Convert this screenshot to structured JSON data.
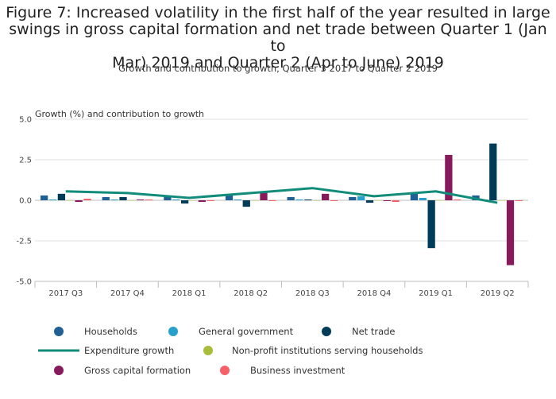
{
  "title": "Figure 7: Increased volatility in the first half of the year resulted in large swings in gross capital formation and net trade between Quarter 1 (Jan to Mar) 2019 and Quarter 2 (Apr to June) 2019",
  "title_lines": [
    "Figure 7: Increased volatility in the first half of the year resulted in large",
    "swings in gross capital formation and net trade between Quarter 1 (Jan to",
    "Mar) 2019 and Quarter 2 (Apr to June) 2019"
  ],
  "subtitle": "Growth and contribution to growth, Quarter 3 2017 to Quarter 2 2019",
  "chart_data": {
    "type": "bar",
    "title": "Figure 7: Increased volatility in the first half of the year resulted in large swings in gross capital formation and net trade between Quarter 1 (Jan to Mar) 2019 and Quarter 2 (Apr to June) 2019",
    "subtitle": "Growth and contribution to growth, Quarter 3 2017 to Quarter 2 2019",
    "ylabel": "Growth (%) and contribution to growth",
    "xlabel": "",
    "ylim": [
      -5.0,
      5.0
    ],
    "yticks": [
      5.0,
      2.5,
      0.0,
      -2.5,
      -5.0
    ],
    "ytick_labels": [
      "5.0",
      "2.5",
      "0.0",
      "-2.5",
      "-5.0"
    ],
    "grid": true,
    "legend_position": "bottom",
    "categories": [
      "2017 Q3",
      "2017 Q4",
      "2018 Q1",
      "2018 Q2",
      "2018 Q3",
      "2018 Q4",
      "2019 Q1",
      "2019 Q2"
    ],
    "series": [
      {
        "name": "Households",
        "kind": "bar",
        "color": "#206095",
        "values": [
          0.3,
          0.2,
          0.2,
          0.3,
          0.2,
          0.2,
          0.4,
          0.3
        ]
      },
      {
        "name": "General government",
        "kind": "bar",
        "color": "#27a0cc",
        "values": [
          0.05,
          0.05,
          0.05,
          0.05,
          0.05,
          0.25,
          0.15,
          0.05
        ]
      },
      {
        "name": "Net trade",
        "kind": "bar",
        "color": "#003c57",
        "values": [
          0.4,
          0.2,
          -0.2,
          -0.4,
          0.05,
          -0.15,
          -2.95,
          3.5
        ]
      },
      {
        "name": "Non-profit institutions serving households",
        "kind": "bar",
        "color": "#a8bd3a",
        "values": [
          0.0,
          0.0,
          0.0,
          0.0,
          0.0,
          0.0,
          0.0,
          0.0
        ]
      },
      {
        "name": "Gross capital formation",
        "kind": "bar",
        "color": "#871a5b",
        "values": [
          -0.1,
          0.05,
          -0.1,
          0.5,
          0.4,
          -0.05,
          2.8,
          -4.0
        ]
      },
      {
        "name": "Business investment",
        "kind": "bar",
        "color": "#f66068",
        "values": [
          0.1,
          0.05,
          -0.05,
          -0.05,
          -0.05,
          -0.1,
          0.05,
          -0.05
        ]
      },
      {
        "name": "Expenditure growth",
        "kind": "line",
        "color": "#118c7b",
        "values": [
          0.55,
          0.45,
          0.15,
          0.45,
          0.75,
          0.25,
          0.55,
          -0.15
        ]
      }
    ],
    "legend_order": [
      "Households",
      "General government",
      "Net trade",
      "Expenditure growth",
      "Non-profit institutions serving households",
      "Gross capital formation",
      "Business investment"
    ]
  }
}
